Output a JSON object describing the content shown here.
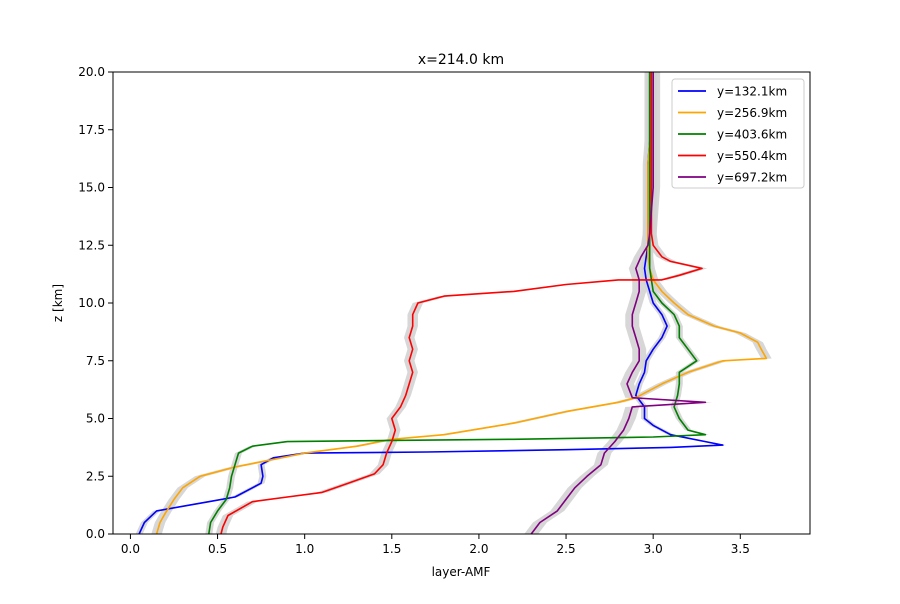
{
  "chart_data": {
    "type": "line",
    "title": "x=214.0 km",
    "xlabel": "layer-AMF",
    "ylabel": "z [km]",
    "xlim": [
      -0.1,
      3.9
    ],
    "ylim": [
      0,
      20
    ],
    "xticks": [
      0.0,
      0.5,
      1.0,
      1.5,
      2.0,
      2.5,
      3.0,
      3.5
    ],
    "xtick_labels": [
      "0.0",
      "0.5",
      "1.0",
      "1.5",
      "2.0",
      "2.5",
      "3.0",
      "3.5"
    ],
    "yticks": [
      0.0,
      2.5,
      5.0,
      7.5,
      10.0,
      12.5,
      15.0,
      17.5,
      20.0
    ],
    "ytick_labels": [
      "0.0",
      "2.5",
      "5.0",
      "7.5",
      "10.0",
      "12.5",
      "15.0",
      "17.5",
      "20.0"
    ],
    "grid": false,
    "legend_position": "top-right",
    "uncertainty_band_color": "#d3d3d3",
    "series": [
      {
        "name": "y=132.1km",
        "color": "#0000ff",
        "points": [
          [
            0.05,
            0
          ],
          [
            0.08,
            0.5
          ],
          [
            0.15,
            1.0
          ],
          [
            0.45,
            1.4
          ],
          [
            0.6,
            1.6
          ],
          [
            0.7,
            2.0
          ],
          [
            0.75,
            2.2
          ],
          [
            0.76,
            2.5
          ],
          [
            0.75,
            3.0
          ],
          [
            0.82,
            3.3
          ],
          [
            1.0,
            3.5
          ],
          [
            1.7,
            3.55
          ],
          [
            2.5,
            3.65
          ],
          [
            3.1,
            3.75
          ],
          [
            3.4,
            3.85
          ],
          [
            3.3,
            4.0
          ],
          [
            3.1,
            4.3
          ],
          [
            3.0,
            4.7
          ],
          [
            2.95,
            5.0
          ],
          [
            2.95,
            5.5
          ],
          [
            2.9,
            6.0
          ],
          [
            2.92,
            6.5
          ],
          [
            2.95,
            7.0
          ],
          [
            2.96,
            7.5
          ],
          [
            3.0,
            8.0
          ],
          [
            3.05,
            8.5
          ],
          [
            3.08,
            9.0
          ],
          [
            3.05,
            9.5
          ],
          [
            3.0,
            10.0
          ],
          [
            2.98,
            10.5
          ],
          [
            2.96,
            11.0
          ],
          [
            2.95,
            11.5
          ],
          [
            2.96,
            12.0
          ],
          [
            2.97,
            12.5
          ],
          [
            2.97,
            13.0
          ],
          [
            2.97,
            14.0
          ],
          [
            2.97,
            15.0
          ],
          [
            2.97,
            16.0
          ],
          [
            2.98,
            17.0
          ],
          [
            2.98,
            18.0
          ],
          [
            2.98,
            19.0
          ],
          [
            2.98,
            20.0
          ]
        ],
        "band": 0.02
      },
      {
        "name": "y=256.9km",
        "color": "#ffa500",
        "points": [
          [
            0.15,
            0
          ],
          [
            0.17,
            0.5
          ],
          [
            0.2,
            0.9
          ],
          [
            0.25,
            1.5
          ],
          [
            0.3,
            2.0
          ],
          [
            0.4,
            2.5
          ],
          [
            0.6,
            2.9
          ],
          [
            0.8,
            3.2
          ],
          [
            1.0,
            3.5
          ],
          [
            1.3,
            3.8
          ],
          [
            1.5,
            4.1
          ],
          [
            1.8,
            4.3
          ],
          [
            2.2,
            4.8
          ],
          [
            2.5,
            5.3
          ],
          [
            2.8,
            5.7
          ],
          [
            2.9,
            5.9
          ],
          [
            3.05,
            6.5
          ],
          [
            3.2,
            7.0
          ],
          [
            3.4,
            7.5
          ],
          [
            3.65,
            7.6
          ],
          [
            3.62,
            8.0
          ],
          [
            3.6,
            8.3
          ],
          [
            3.5,
            8.7
          ],
          [
            3.35,
            9.0
          ],
          [
            3.2,
            9.5
          ],
          [
            3.12,
            10.0
          ],
          [
            3.05,
            10.5
          ],
          [
            3.0,
            11.0
          ],
          [
            2.98,
            11.5
          ],
          [
            2.97,
            12.0
          ],
          [
            2.97,
            13.0
          ],
          [
            2.97,
            14.0
          ],
          [
            2.97,
            15.0
          ],
          [
            2.97,
            16.0
          ],
          [
            2.98,
            17.0
          ],
          [
            2.98,
            18.0
          ],
          [
            2.98,
            19.0
          ],
          [
            2.98,
            20.0
          ]
        ],
        "band": 0.03
      },
      {
        "name": "y=403.6km",
        "color": "#008000",
        "points": [
          [
            0.45,
            0
          ],
          [
            0.46,
            0.5
          ],
          [
            0.5,
            1.0
          ],
          [
            0.55,
            1.5
          ],
          [
            0.57,
            2.0
          ],
          [
            0.58,
            2.5
          ],
          [
            0.6,
            3.0
          ],
          [
            0.62,
            3.5
          ],
          [
            0.7,
            3.8
          ],
          [
            0.9,
            4.0
          ],
          [
            1.5,
            4.05
          ],
          [
            2.2,
            4.1
          ],
          [
            3.0,
            4.2
          ],
          [
            3.3,
            4.3
          ],
          [
            3.2,
            4.5
          ],
          [
            3.15,
            5.0
          ],
          [
            3.12,
            5.5
          ],
          [
            3.14,
            6.0
          ],
          [
            3.15,
            6.5
          ],
          [
            3.15,
            7.0
          ],
          [
            3.25,
            7.5
          ],
          [
            3.2,
            8.0
          ],
          [
            3.15,
            8.5
          ],
          [
            3.15,
            9.0
          ],
          [
            3.12,
            9.5
          ],
          [
            3.05,
            10.0
          ],
          [
            3.0,
            10.5
          ],
          [
            2.99,
            11.0
          ],
          [
            2.98,
            11.5
          ],
          [
            2.98,
            12.0
          ],
          [
            2.98,
            13.0
          ],
          [
            2.98,
            14.0
          ],
          [
            2.98,
            15.0
          ],
          [
            2.98,
            16.0
          ],
          [
            2.98,
            17.0
          ],
          [
            2.98,
            18.0
          ],
          [
            2.98,
            19.0
          ],
          [
            2.98,
            20.0
          ]
        ],
        "band": 0.02
      },
      {
        "name": "y=550.4km",
        "color": "#ff0000",
        "points": [
          [
            0.52,
            0
          ],
          [
            0.53,
            0.3
          ],
          [
            0.56,
            0.8
          ],
          [
            0.7,
            1.4
          ],
          [
            0.9,
            1.6
          ],
          [
            1.1,
            1.8
          ],
          [
            1.25,
            2.2
          ],
          [
            1.4,
            2.6
          ],
          [
            1.45,
            3.0
          ],
          [
            1.47,
            3.5
          ],
          [
            1.5,
            4.0
          ],
          [
            1.52,
            4.5
          ],
          [
            1.5,
            5.0
          ],
          [
            1.55,
            5.5
          ],
          [
            1.58,
            6.0
          ],
          [
            1.6,
            6.5
          ],
          [
            1.62,
            7.0
          ],
          [
            1.6,
            7.5
          ],
          [
            1.62,
            8.0
          ],
          [
            1.6,
            8.5
          ],
          [
            1.62,
            9.0
          ],
          [
            1.62,
            9.5
          ],
          [
            1.65,
            10.0
          ],
          [
            1.8,
            10.3
          ],
          [
            2.2,
            10.5
          ],
          [
            2.5,
            10.8
          ],
          [
            2.8,
            11.0
          ],
          [
            3.05,
            11.0
          ],
          [
            3.15,
            11.2
          ],
          [
            3.28,
            11.5
          ],
          [
            3.1,
            11.8
          ],
          [
            3.05,
            12.0
          ],
          [
            3.0,
            12.5
          ],
          [
            2.99,
            13.0
          ],
          [
            2.99,
            14.0
          ],
          [
            2.99,
            15.0
          ],
          [
            2.99,
            16.0
          ],
          [
            2.99,
            17.0
          ],
          [
            2.99,
            18.0
          ],
          [
            2.99,
            19.0
          ],
          [
            2.99,
            20.0
          ]
        ],
        "band": 0.03
      },
      {
        "name": "y=697.2km",
        "color": "#800080",
        "points": [
          [
            2.3,
            0
          ],
          [
            2.35,
            0.5
          ],
          [
            2.45,
            1.0
          ],
          [
            2.5,
            1.5
          ],
          [
            2.55,
            2.0
          ],
          [
            2.62,
            2.5
          ],
          [
            2.7,
            3.0
          ],
          [
            2.72,
            3.5
          ],
          [
            2.78,
            4.0
          ],
          [
            2.83,
            4.5
          ],
          [
            2.86,
            5.0
          ],
          [
            2.88,
            5.5
          ],
          [
            3.3,
            5.7
          ],
          [
            2.88,
            5.9
          ],
          [
            2.85,
            6.5
          ],
          [
            2.88,
            7.0
          ],
          [
            2.92,
            7.5
          ],
          [
            2.92,
            8.0
          ],
          [
            2.9,
            8.5
          ],
          [
            2.88,
            9.0
          ],
          [
            2.88,
            9.5
          ],
          [
            2.9,
            10.0
          ],
          [
            2.92,
            10.5
          ],
          [
            2.92,
            11.0
          ],
          [
            2.9,
            11.5
          ],
          [
            2.93,
            12.0
          ],
          [
            2.97,
            12.5
          ],
          [
            2.98,
            13.0
          ],
          [
            2.99,
            14.0
          ],
          [
            3.0,
            15.0
          ],
          [
            3.0,
            16.0
          ],
          [
            3.0,
            17.0
          ],
          [
            3.0,
            18.0
          ],
          [
            3.0,
            19.0
          ],
          [
            3.0,
            20.0
          ]
        ],
        "band": 0.04
      }
    ]
  }
}
